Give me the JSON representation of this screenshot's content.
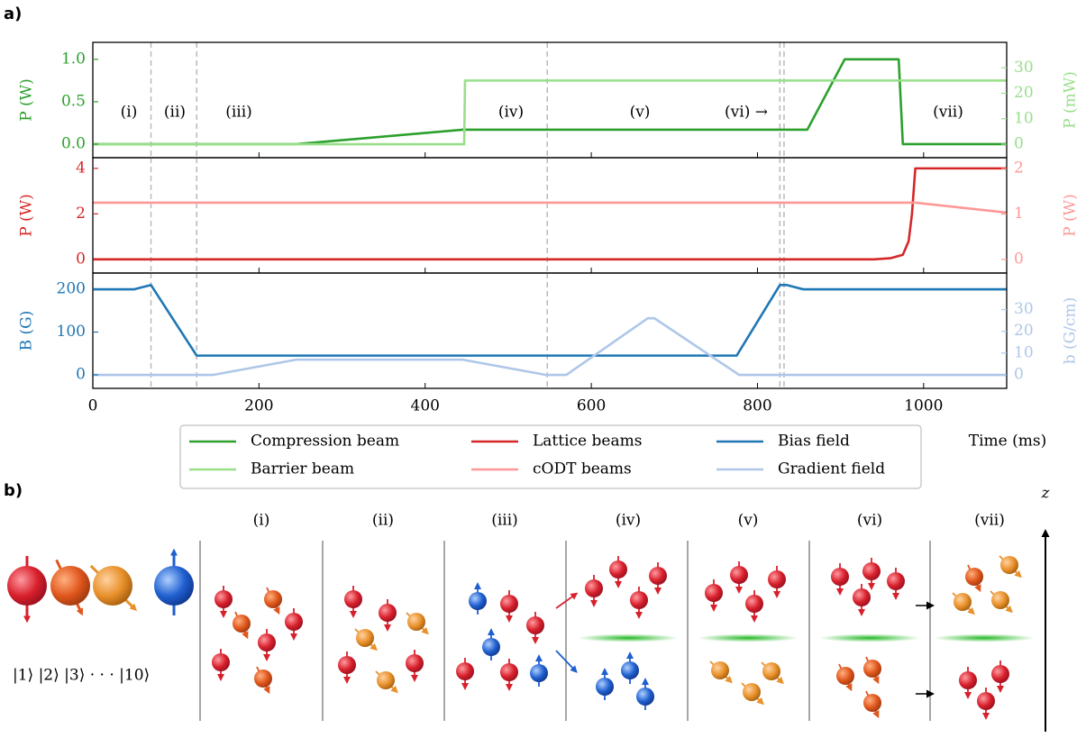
{
  "panel_labels": [
    "a)",
    "b)"
  ],
  "chart_data": [
    {
      "type": "line",
      "ylabel": "P (W)",
      "y2label": "P (mW)",
      "xlim": [
        0,
        1100
      ],
      "ylim": [
        -0.16,
        1.2
      ],
      "y2lim": [
        -5.3,
        40
      ],
      "yticks": [
        {
          "value": 0,
          "label": "0.0"
        },
        0.5,
        {
          "value": 1,
          "label": "1.0"
        }
      ],
      "y2ticks": [
        0,
        10,
        20,
        30
      ],
      "vlines": [
        70,
        125,
        547,
        827,
        832
      ],
      "annotations": [
        "(i)",
        "(ii)",
        "(iii)",
        "(iv)",
        "(v)",
        "(vi) →",
        "(vii)"
      ],
      "series": [
        {
          "name": "Compression beam",
          "color": "#2ca02c",
          "axis": "y",
          "x": [
            0,
            245,
            445,
            860,
            905,
            970,
            975,
            1100
          ],
          "values": [
            0,
            0,
            0.17,
            0.17,
            1,
            1,
            0,
            0
          ]
        },
        {
          "name": "Barrier beam",
          "color": "#98df8a",
          "axis": "y2",
          "x": [
            0,
            447,
            448,
            1100
          ],
          "values": [
            0,
            0,
            25,
            25
          ]
        }
      ]
    },
    {
      "type": "line",
      "ylabel": "P (W)",
      "y2label": "P (W)",
      "xlim": [
        0,
        1100
      ],
      "ylim": [
        -0.6,
        4.47
      ],
      "y2lim": [
        -0.3,
        2.24
      ],
      "yticks": [
        0,
        2,
        4
      ],
      "y2ticks": [
        0,
        1,
        2
      ],
      "series": [
        {
          "name": "Lattice beams",
          "color": "#d62728",
          "axis": "y",
          "x": [
            0,
            940,
            960,
            975,
            982,
            986,
            990,
            1100
          ],
          "values": [
            0,
            0,
            0.05,
            0.2,
            0.8,
            2,
            4,
            4
          ]
        },
        {
          "name": "cODT beams",
          "color": "#ff9896",
          "axis": "y2",
          "x": [
            0,
            990,
            1100
          ],
          "values": [
            1.25,
            1.25,
            1.03
          ]
        }
      ]
    },
    {
      "type": "line",
      "ylabel": "B (G)",
      "y2label": "b (G/cm)",
      "xlabel": "Time (ms)",
      "xlim": [
        0,
        1100
      ],
      "ylim": [
        -31.6,
        238
      ],
      "y2lim": [
        -6.2,
        46.8
      ],
      "xticks": [
        0,
        200,
        400,
        600,
        800,
        1000
      ],
      "yticks": [
        0,
        100,
        200
      ],
      "y2ticks": [
        0,
        10,
        20,
        30
      ],
      "series": [
        {
          "name": "Bias field",
          "color": "#1f77b4",
          "axis": "y",
          "x": [
            0,
            50,
            70,
            125,
            775,
            827,
            835,
            855,
            1100
          ],
          "values": [
            200,
            200,
            210,
            45,
            45,
            210,
            210,
            200,
            200
          ]
        },
        {
          "name": "Gradient field",
          "color": "#aec7e8",
          "axis": "y2",
          "x": [
            0,
            145,
            245,
            445,
            545,
            570,
            668,
            676,
            778,
            1100
          ],
          "values": [
            0,
            0,
            7,
            7,
            0,
            0,
            26,
            26,
            0,
            0
          ]
        }
      ]
    }
  ],
  "diagram": {
    "columns": [
      "(i)",
      "(ii)",
      "(iii)",
      "(iv)",
      "(v)",
      "(vi)",
      "(vii)"
    ],
    "states": "|1⟩ |2⟩ |3⟩ · · · |10⟩",
    "axis_label": "z"
  }
}
